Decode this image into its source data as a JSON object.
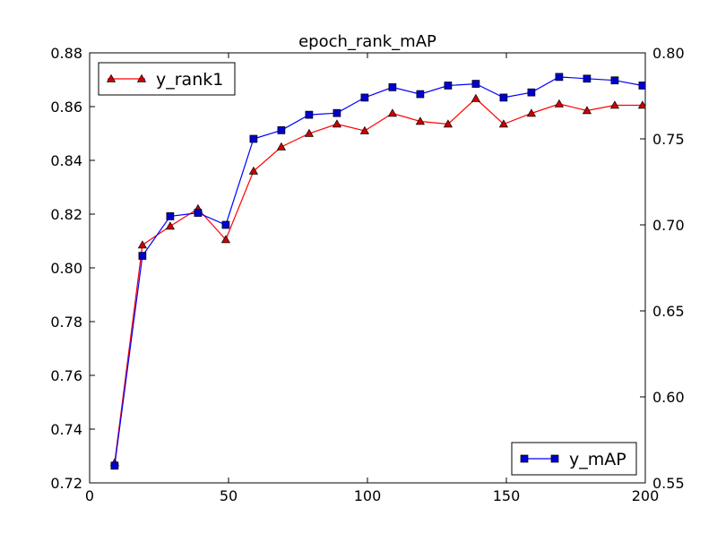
{
  "chart_data": {
    "type": "line",
    "title": "epoch_rank_mAP",
    "xlabel": "",
    "ylabel": "",
    "xlim": [
      0,
      200
    ],
    "x_ticks": [
      "0",
      "50",
      "100",
      "150",
      "200"
    ],
    "y_left_lim": [
      0.72,
      0.88
    ],
    "y_left_ticks": [
      "0.72",
      "0.74",
      "0.76",
      "0.78",
      "0.80",
      "0.82",
      "0.84",
      "0.86",
      "0.88"
    ],
    "y_right_lim": [
      0.55,
      0.8
    ],
    "y_right_ticks": [
      "0.55",
      "0.60",
      "0.65",
      "0.70",
      "0.75",
      "0.80"
    ],
    "grid": false,
    "x": [
      9,
      19,
      29,
      39,
      49,
      59,
      69,
      79,
      89,
      99,
      109,
      119,
      129,
      139,
      149,
      159,
      169,
      179,
      189,
      199
    ],
    "series": [
      {
        "name": "y_rank1",
        "axis": "left",
        "color": "#ff0000",
        "marker_fill": "#cc0000",
        "marker": "triangle",
        "legend_position": "upper-left",
        "values": [
          0.7275,
          0.8085,
          0.8155,
          0.822,
          0.8105,
          0.836,
          0.845,
          0.85,
          0.8535,
          0.851,
          0.8575,
          0.8545,
          0.8535,
          0.863,
          0.8535,
          0.8575,
          0.861,
          0.8585,
          0.8605,
          0.8605
        ]
      },
      {
        "name": "y_mAP",
        "axis": "right",
        "color": "#0000ff",
        "marker_fill": "#0000cc",
        "marker": "square",
        "legend_position": "lower-right",
        "values": [
          0.56,
          0.682,
          0.705,
          0.707,
          0.7,
          0.75,
          0.755,
          0.764,
          0.765,
          0.774,
          0.78,
          0.776,
          0.781,
          0.782,
          0.774,
          0.777,
          0.786,
          0.785,
          0.784,
          0.781
        ]
      }
    ]
  }
}
